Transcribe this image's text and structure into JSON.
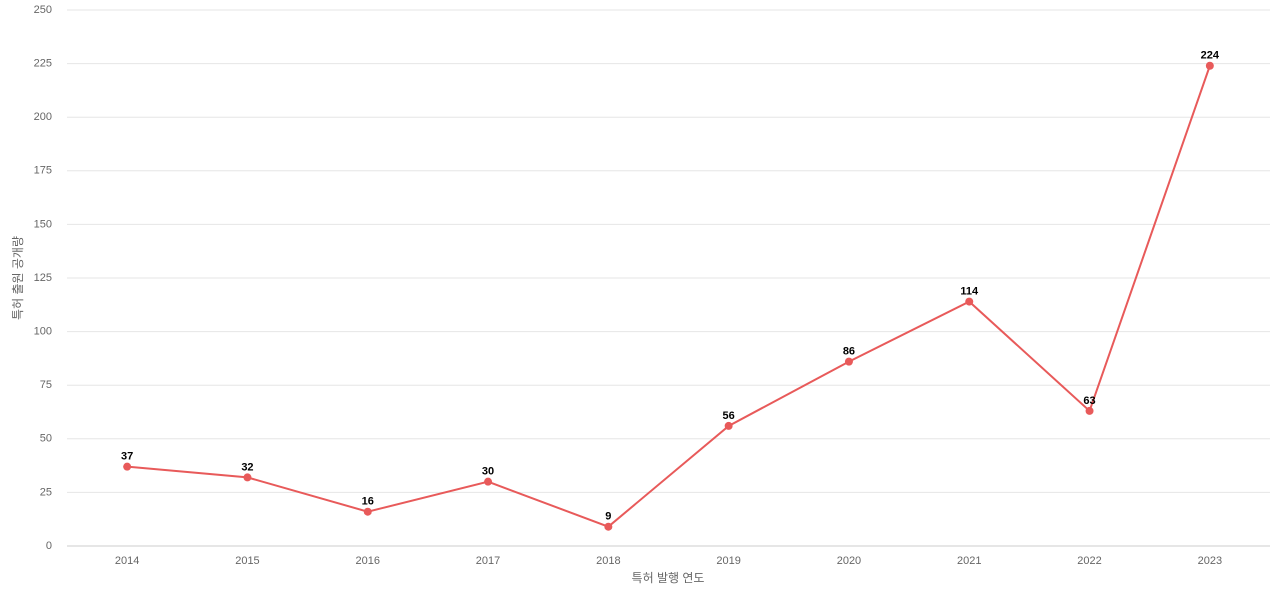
{
  "chart_data": {
    "type": "line",
    "x_label": "특허 발행 연도",
    "y_label": "특허 출원 공개량",
    "categories": [
      "2014",
      "2015",
      "2016",
      "2017",
      "2018",
      "2019",
      "2020",
      "2021",
      "2022",
      "2023"
    ],
    "series": [
      {
        "name": "특허 출원 공개량",
        "color": "#e85a5a",
        "values": [
          37,
          32,
          16,
          30,
          9,
          56,
          86,
          114,
          63,
          224
        ]
      }
    ],
    "ylim": [
      0,
      250
    ],
    "yticks": [
      0,
      25,
      50,
      75,
      100,
      125,
      150,
      175,
      200,
      225,
      250
    ],
    "grid": true
  }
}
